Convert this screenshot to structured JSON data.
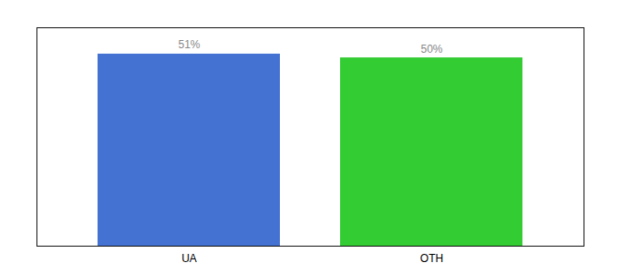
{
  "chart_data": {
    "type": "bar",
    "categories": [
      "UA",
      "OTH"
    ],
    "values": [
      51,
      50
    ],
    "value_labels": [
      "51%",
      "50%"
    ],
    "data_labels": true,
    "colors": [
      "#4472d3",
      "#33cc33"
    ],
    "ylim": [
      0,
      58
    ],
    "tick_labels": "x"
  }
}
